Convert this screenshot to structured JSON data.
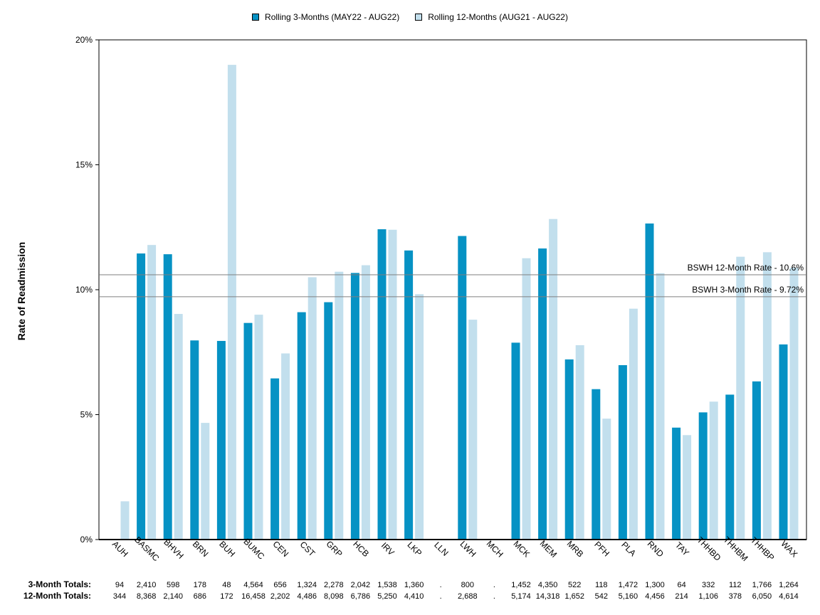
{
  "chart_data": {
    "type": "bar",
    "title": "",
    "xlabel": "",
    "ylabel": "Rate of Readmission",
    "ylim": [
      0,
      20
    ],
    "yticks": [
      "0%",
      "5%",
      "10%",
      "15%",
      "20%"
    ],
    "legend_position": "top-center",
    "categories": [
      "AUH",
      "BASMC",
      "BHVH",
      "BRN",
      "BUH",
      "BUMC",
      "CEN",
      "CST",
      "GRP",
      "HCB",
      "IRV",
      "LKP",
      "LLN",
      "LWH",
      "MCH",
      "MCK",
      "MEM",
      "MRB",
      "PFH",
      "PLA",
      "RND",
      "TAY",
      "THHBD",
      "THHBM",
      "THHBP",
      "WAX"
    ],
    "series": [
      {
        "name": "Rolling 3-Months (MAY22 - AUG22)",
        "color": "#0692c4",
        "values": [
          0,
          11.45,
          11.42,
          7.97,
          7.95,
          8.67,
          6.45,
          9.1,
          9.5,
          10.67,
          12.42,
          11.57,
          null,
          12.15,
          null,
          7.88,
          11.65,
          7.21,
          6.02,
          6.98,
          12.65,
          4.48,
          5.09,
          5.8,
          6.33,
          7.81
        ]
      },
      {
        "name": "Rolling 12-Months (AUG21 - AUG22)",
        "color": "#c2dfed",
        "values": [
          1.53,
          11.79,
          9.03,
          4.67,
          19.0,
          9.0,
          7.45,
          10.5,
          10.72,
          10.98,
          12.4,
          9.82,
          null,
          8.8,
          null,
          11.26,
          12.83,
          7.78,
          4.84,
          9.24,
          10.66,
          4.18,
          5.52,
          11.32,
          11.5,
          10.88
        ]
      }
    ],
    "reference_lines": [
      {
        "label": "BSWH 12-Month Rate - 10.6%",
        "value": 10.6
      },
      {
        "label": "BSWH  3-Month Rate - 9.72%",
        "value": 9.72
      }
    ],
    "totals": {
      "three_month_label": "3-Month Totals:",
      "twelve_month_label": "12-Month Totals:",
      "three_month": [
        "94",
        "2,410",
        "598",
        "178",
        "48",
        "4,564",
        "656",
        "1,324",
        "2,278",
        "2,042",
        "1,538",
        "1,360",
        ".",
        "800",
        ".",
        "1,452",
        "4,350",
        "522",
        "118",
        "1,472",
        "1,300",
        "64",
        "332",
        "112",
        "1,766",
        "1,264"
      ],
      "twelve_month": [
        "344",
        "8,368",
        "2,140",
        "686",
        "172",
        "16,458",
        "2,202",
        "4,486",
        "8,098",
        "6,786",
        "5,250",
        "4,410",
        ".",
        "2,688",
        ".",
        "5,174",
        "14,318",
        "1,652",
        "542",
        "5,160",
        "4,456",
        "214",
        "1,106",
        "378",
        "6,050",
        "4,614"
      ]
    }
  }
}
